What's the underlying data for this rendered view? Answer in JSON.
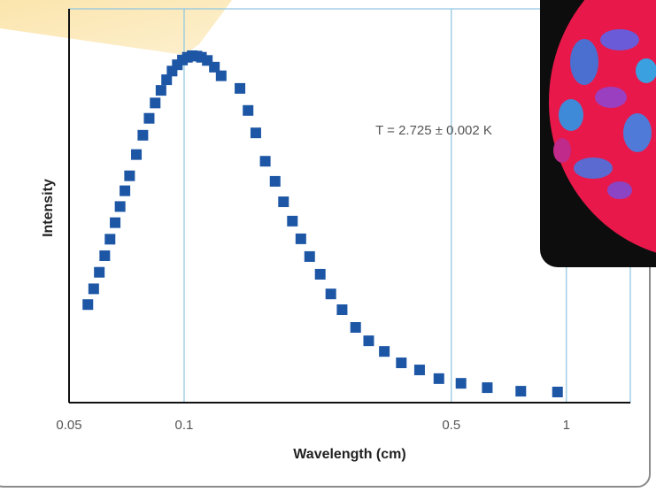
{
  "chart_data": {
    "type": "scatter",
    "xlabel": "Wavelength (cm)",
    "ylabel": "Intensity",
    "annotation": "T = 2.725 ± 0.002 K",
    "x": [
      0.056,
      0.058,
      0.06,
      0.062,
      0.064,
      0.066,
      0.068,
      0.07,
      0.072,
      0.075,
      0.078,
      0.081,
      0.084,
      0.087,
      0.09,
      0.093,
      0.096,
      0.099,
      0.102,
      0.105,
      0.108,
      0.111,
      0.115,
      0.12,
      0.125,
      0.14,
      0.147,
      0.154,
      0.163,
      0.173,
      0.182,
      0.192,
      0.202,
      0.213,
      0.227,
      0.242,
      0.259,
      0.281,
      0.304,
      0.334,
      0.37,
      0.413,
      0.464,
      0.53,
      0.621,
      0.76,
      0.948
    ],
    "values": [
      24.9,
      28.9,
      33.1,
      37.3,
      41.5,
      45.7,
      49.8,
      53.8,
      57.6,
      63.0,
      67.9,
      72.2,
      76.1,
      79.3,
      82.0,
      84.2,
      85.8,
      87.0,
      87.7,
      88.1,
      88.0,
      87.7,
      86.9,
      85.2,
      83.0,
      79.8,
      74.2,
      68.5,
      61.3,
      56.2,
      51.0,
      46.1,
      41.6,
      37.1,
      32.6,
      27.6,
      23.6,
      19.1,
      15.7,
      13.0,
      10.1,
      8.3,
      6.1,
      4.9,
      3.8,
      2.9,
      2.7
    ],
    "color": "#1d56a5",
    "xscale": "log",
    "xlim": [
      0.05,
      1.47
    ],
    "xticks": [
      0.05,
      0.1,
      0.5,
      1
    ],
    "ylim": [
      0,
      100
    ],
    "grid": true
  }
}
